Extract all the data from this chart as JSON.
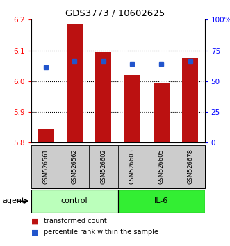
{
  "title": "GDS3773 / 10602625",
  "samples": [
    "GSM526561",
    "GSM526562",
    "GSM526602",
    "GSM526603",
    "GSM526605",
    "GSM526678"
  ],
  "bar_values": [
    5.845,
    6.185,
    6.095,
    6.02,
    5.995,
    6.075
  ],
  "bar_bottom": 5.8,
  "percentile_values": [
    6.045,
    6.065,
    6.065,
    6.055,
    6.055,
    6.065
  ],
  "ylim": [
    5.8,
    6.2
  ],
  "ylim_right": [
    0,
    100
  ],
  "yticks_left": [
    5.8,
    5.9,
    6.0,
    6.1,
    6.2
  ],
  "yticks_right": [
    0,
    25,
    50,
    75,
    100
  ],
  "ytick_labels_right": [
    "0",
    "25",
    "50",
    "75",
    "100%"
  ],
  "bar_color": "#bb1111",
  "blue_color": "#2255cc",
  "groups": [
    {
      "label": "control",
      "indices": [
        0,
        1,
        2
      ],
      "color": "#bbffbb"
    },
    {
      "label": "IL-6",
      "indices": [
        3,
        4,
        5
      ],
      "color": "#33ee33"
    }
  ],
  "agent_label": "agent",
  "legend_bar_label": "transformed count",
  "legend_dot_label": "percentile rank within the sample",
  "sample_area_color": "#cccccc",
  "grid_dotted_vals": [
    5.9,
    6.0,
    6.1
  ]
}
